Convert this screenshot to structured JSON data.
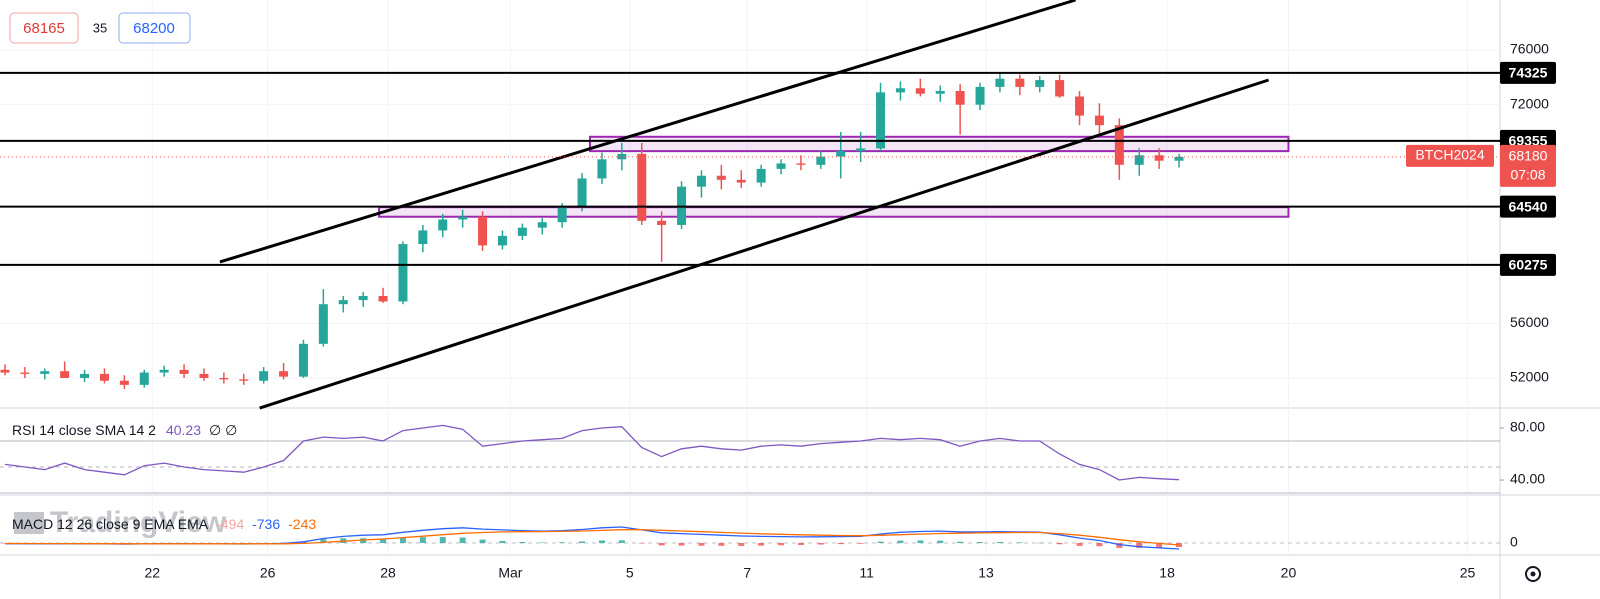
{
  "chart_data": [
    {
      "type": "candlestick",
      "quote": {
        "bid": 68165,
        "spread": 35,
        "ask": 68200
      },
      "watermark": "TradingView",
      "symbol_label": "BTCH2024",
      "last_price": 68180,
      "countdown": "07:08",
      "x": [
        0,
        1,
        2,
        3,
        4,
        5,
        6,
        7,
        8,
        9,
        10,
        11,
        12,
        13,
        14,
        15,
        16,
        17,
        18,
        19,
        20,
        21,
        22,
        23,
        24,
        25,
        26,
        27,
        28,
        29,
        30,
        31,
        32,
        33,
        34,
        35,
        36,
        37,
        38,
        39,
        40,
        41,
        42,
        43,
        44,
        45,
        46,
        47,
        48,
        49,
        50,
        51,
        52,
        53,
        54,
        55,
        56,
        57,
        58,
        59
      ],
      "open": [
        52600,
        52400,
        52300,
        52500,
        52000,
        52300,
        51800,
        51500,
        52400,
        52600,
        52300,
        52000,
        51900,
        51800,
        52500,
        52100,
        54500,
        57400,
        57700,
        58000,
        57600,
        61800,
        62800,
        63600,
        63800,
        61700,
        62400,
        63000,
        63400,
        64500,
        66600,
        68000,
        68400,
        63500,
        63200,
        66000,
        66800,
        66500,
        66300,
        67300,
        67700,
        67600,
        68200,
        68600,
        68800,
        72900,
        73200,
        72800,
        73000,
        72000,
        73300,
        73900,
        73300,
        73800,
        72600,
        71200,
        70500,
        67600,
        68300,
        67900
      ],
      "high": [
        53000,
        52800,
        52700,
        53200,
        52600,
        52700,
        52200,
        52600,
        52900,
        53000,
        52700,
        52400,
        52300,
        52800,
        53100,
        54800,
        58500,
        58000,
        58300,
        58600,
        62000,
        63200,
        64000,
        64300,
        64200,
        62800,
        63300,
        63700,
        64800,
        67000,
        68500,
        69200,
        69200,
        64200,
        66400,
        67200,
        67600,
        67200,
        67600,
        68000,
        68300,
        68600,
        70000,
        70000,
        73600,
        73700,
        73900,
        73400,
        73500,
        73600,
        74300,
        74200,
        74100,
        74200,
        73000,
        72100,
        71000,
        68800,
        68800,
        68400
      ],
      "low": [
        52200,
        52000,
        51900,
        52100,
        51700,
        51600,
        51200,
        51300,
        52100,
        52000,
        51800,
        51600,
        51500,
        51600,
        51900,
        52000,
        54300,
        56800,
        57200,
        57500,
        57400,
        61200,
        62300,
        63000,
        61300,
        61400,
        62100,
        62500,
        63000,
        64200,
        66200,
        67200,
        63200,
        60500,
        62900,
        65200,
        65800,
        65900,
        66000,
        66900,
        67200,
        67300,
        66600,
        67800,
        68600,
        72300,
        72600,
        72200,
        69800,
        71600,
        72900,
        72700,
        72900,
        72500,
        70500,
        69800,
        66500,
        66800,
        67300,
        67400
      ],
      "close": [
        52400,
        52300,
        52500,
        52000,
        52300,
        51800,
        51500,
        52400,
        52600,
        52300,
        52000,
        51900,
        51800,
        52500,
        52100,
        54500,
        57400,
        57700,
        58000,
        57600,
        61800,
        62800,
        63600,
        63800,
        61700,
        62400,
        63000,
        63400,
        64500,
        66600,
        68000,
        68400,
        63500,
        63200,
        66000,
        66800,
        66500,
        66300,
        67300,
        67700,
        67600,
        68200,
        68600,
        68800,
        72900,
        73200,
        72800,
        73000,
        72000,
        73300,
        73900,
        73300,
        73800,
        72600,
        71200,
        70500,
        67600,
        68300,
        67900,
        68180
      ],
      "up_color": "#26a69a",
      "down_color": "#ef5350",
      "levels": [
        74325,
        69355,
        64540,
        60275
      ],
      "zones": [
        {
          "x": [
            29.4,
            64.5
          ],
          "y": [
            68600,
            69650
          ]
        },
        {
          "x": [
            18.8,
            64.5
          ],
          "y": [
            63800,
            64500
          ]
        }
      ],
      "zone_color": "#9c27b0",
      "trendlines": [
        {
          "x": [
            10.8,
            53.8
          ],
          "y": [
            60490,
            79658
          ]
        },
        {
          "x": [
            12.8,
            63.5
          ],
          "y": [
            49800,
            73805
          ]
        }
      ],
      "xlim": [
        -0.25,
        75.13
      ],
      "ylim": [
        49806,
        79658
      ],
      "yticks": [
        52000,
        56000,
        72000,
        76000
      ],
      "xticks": [
        {
          "value": 7.4,
          "label": "22"
        },
        {
          "value": 13.2,
          "label": "26"
        },
        {
          "value": 19.25,
          "label": "28"
        },
        {
          "value": 25.4,
          "label": "Mar"
        },
        {
          "value": 31.4,
          "label": "5"
        },
        {
          "value": 37.3,
          "label": "7"
        },
        {
          "value": 43.3,
          "label": "11"
        },
        {
          "value": 49.3,
          "label": "13"
        },
        {
          "value": 58.4,
          "label": "18"
        },
        {
          "value": 64.5,
          "label": "20"
        },
        {
          "value": 73.5,
          "label": "25"
        }
      ],
      "grid": true
    },
    {
      "type": "line",
      "legend": "RSI 14 close SMA 14 2",
      "extra": "∅ ∅",
      "color": "#7e57c2",
      "values": [
        52,
        50,
        48,
        53,
        48,
        46,
        44,
        51,
        53,
        50,
        48,
        47,
        46,
        50,
        55,
        70,
        73,
        72,
        73,
        70,
        78,
        80,
        82,
        79,
        66,
        68,
        70,
        71,
        72,
        78,
        80,
        81,
        65,
        58,
        64,
        66,
        64,
        63,
        66,
        67,
        66,
        68,
        69,
        70,
        72,
        71,
        72,
        71,
        66,
        70,
        72,
        70,
        70,
        60,
        52,
        48,
        40,
        42,
        41,
        40.23
      ],
      "bands": [
        70,
        50,
        30
      ],
      "ylim": [
        28.5,
        95.4
      ],
      "yticks": [
        {
          "value": 80,
          "label": "80.00"
        },
        {
          "value": 40,
          "label": "40.00"
        }
      ]
    },
    {
      "type": "macd",
      "legend": "MACD 12 26 close 9 EMA EMA",
      "series": [
        {
          "color": "#f7a5a5",
          "style": "histogram",
          "values": [
            -20,
            -24,
            -27,
            -14,
            -19,
            -23,
            -34,
            -11,
            7,
            6,
            -3,
            -11,
            -17,
            3,
            42,
            194,
            475,
            580,
            584,
            507,
            646,
            717,
            734,
            667,
            414,
            251,
            121,
            57,
            86,
            189,
            311,
            329,
            -17,
            -294,
            -315,
            -332,
            -346,
            -357,
            -326,
            -277,
            -246,
            -189,
            -135,
            -92,
            166,
            293,
            314,
            291,
            153,
            122,
            122,
            73,
            34,
            -150,
            -350,
            -400,
            -600,
            -600,
            -550,
            -494
          ]
        },
        {
          "color": "#2962ff",
          "style": "line",
          "values": [
            -80,
            -90,
            -100,
            -90,
            -100,
            -110,
            -130,
            -110,
            -90,
            -90,
            -100,
            -110,
            -120,
            -100,
            -50,
            150,
            550,
            800,
            950,
            1000,
            1300,
            1550,
            1750,
            1850,
            1700,
            1600,
            1500,
            1450,
            1500,
            1650,
            1850,
            1950,
            1600,
            1250,
            1150,
            1050,
            950,
            850,
            800,
            780,
            750,
            760,
            780,
            800,
            1100,
            1300,
            1400,
            1450,
            1350,
            1350,
            1380,
            1350,
            1320,
            1000,
            600,
            300,
            -200,
            -450,
            -600,
            -736
          ]
        },
        {
          "color": "#ff6d00",
          "style": "line",
          "values": [
            -60,
            -66,
            -73,
            -76,
            -81,
            -87,
            -96,
            -99,
            -97,
            -96,
            -97,
            -99,
            -103,
            -103,
            -92,
            -44,
            75,
            220,
            366,
            493,
            654,
            833,
            1016,
            1183,
            1286,
            1349,
            1379,
            1393,
            1414,
            1461,
            1539,
            1621,
            1617,
            1544,
            1465,
            1382,
            1296,
            1207,
            1126,
            1057,
            996,
            949,
            915,
            892,
            934,
            1007,
            1086,
            1159,
            1197,
            1228,
            1258,
            1277,
            1286,
            1150,
            950,
            700,
            400,
            150,
            -50,
            -243
          ]
        }
      ],
      "hist_up": "#26a69a",
      "hist_down": "#ef5350",
      "ylim": [
        -1464,
        5856
      ],
      "yticks": [
        0
      ]
    }
  ]
}
